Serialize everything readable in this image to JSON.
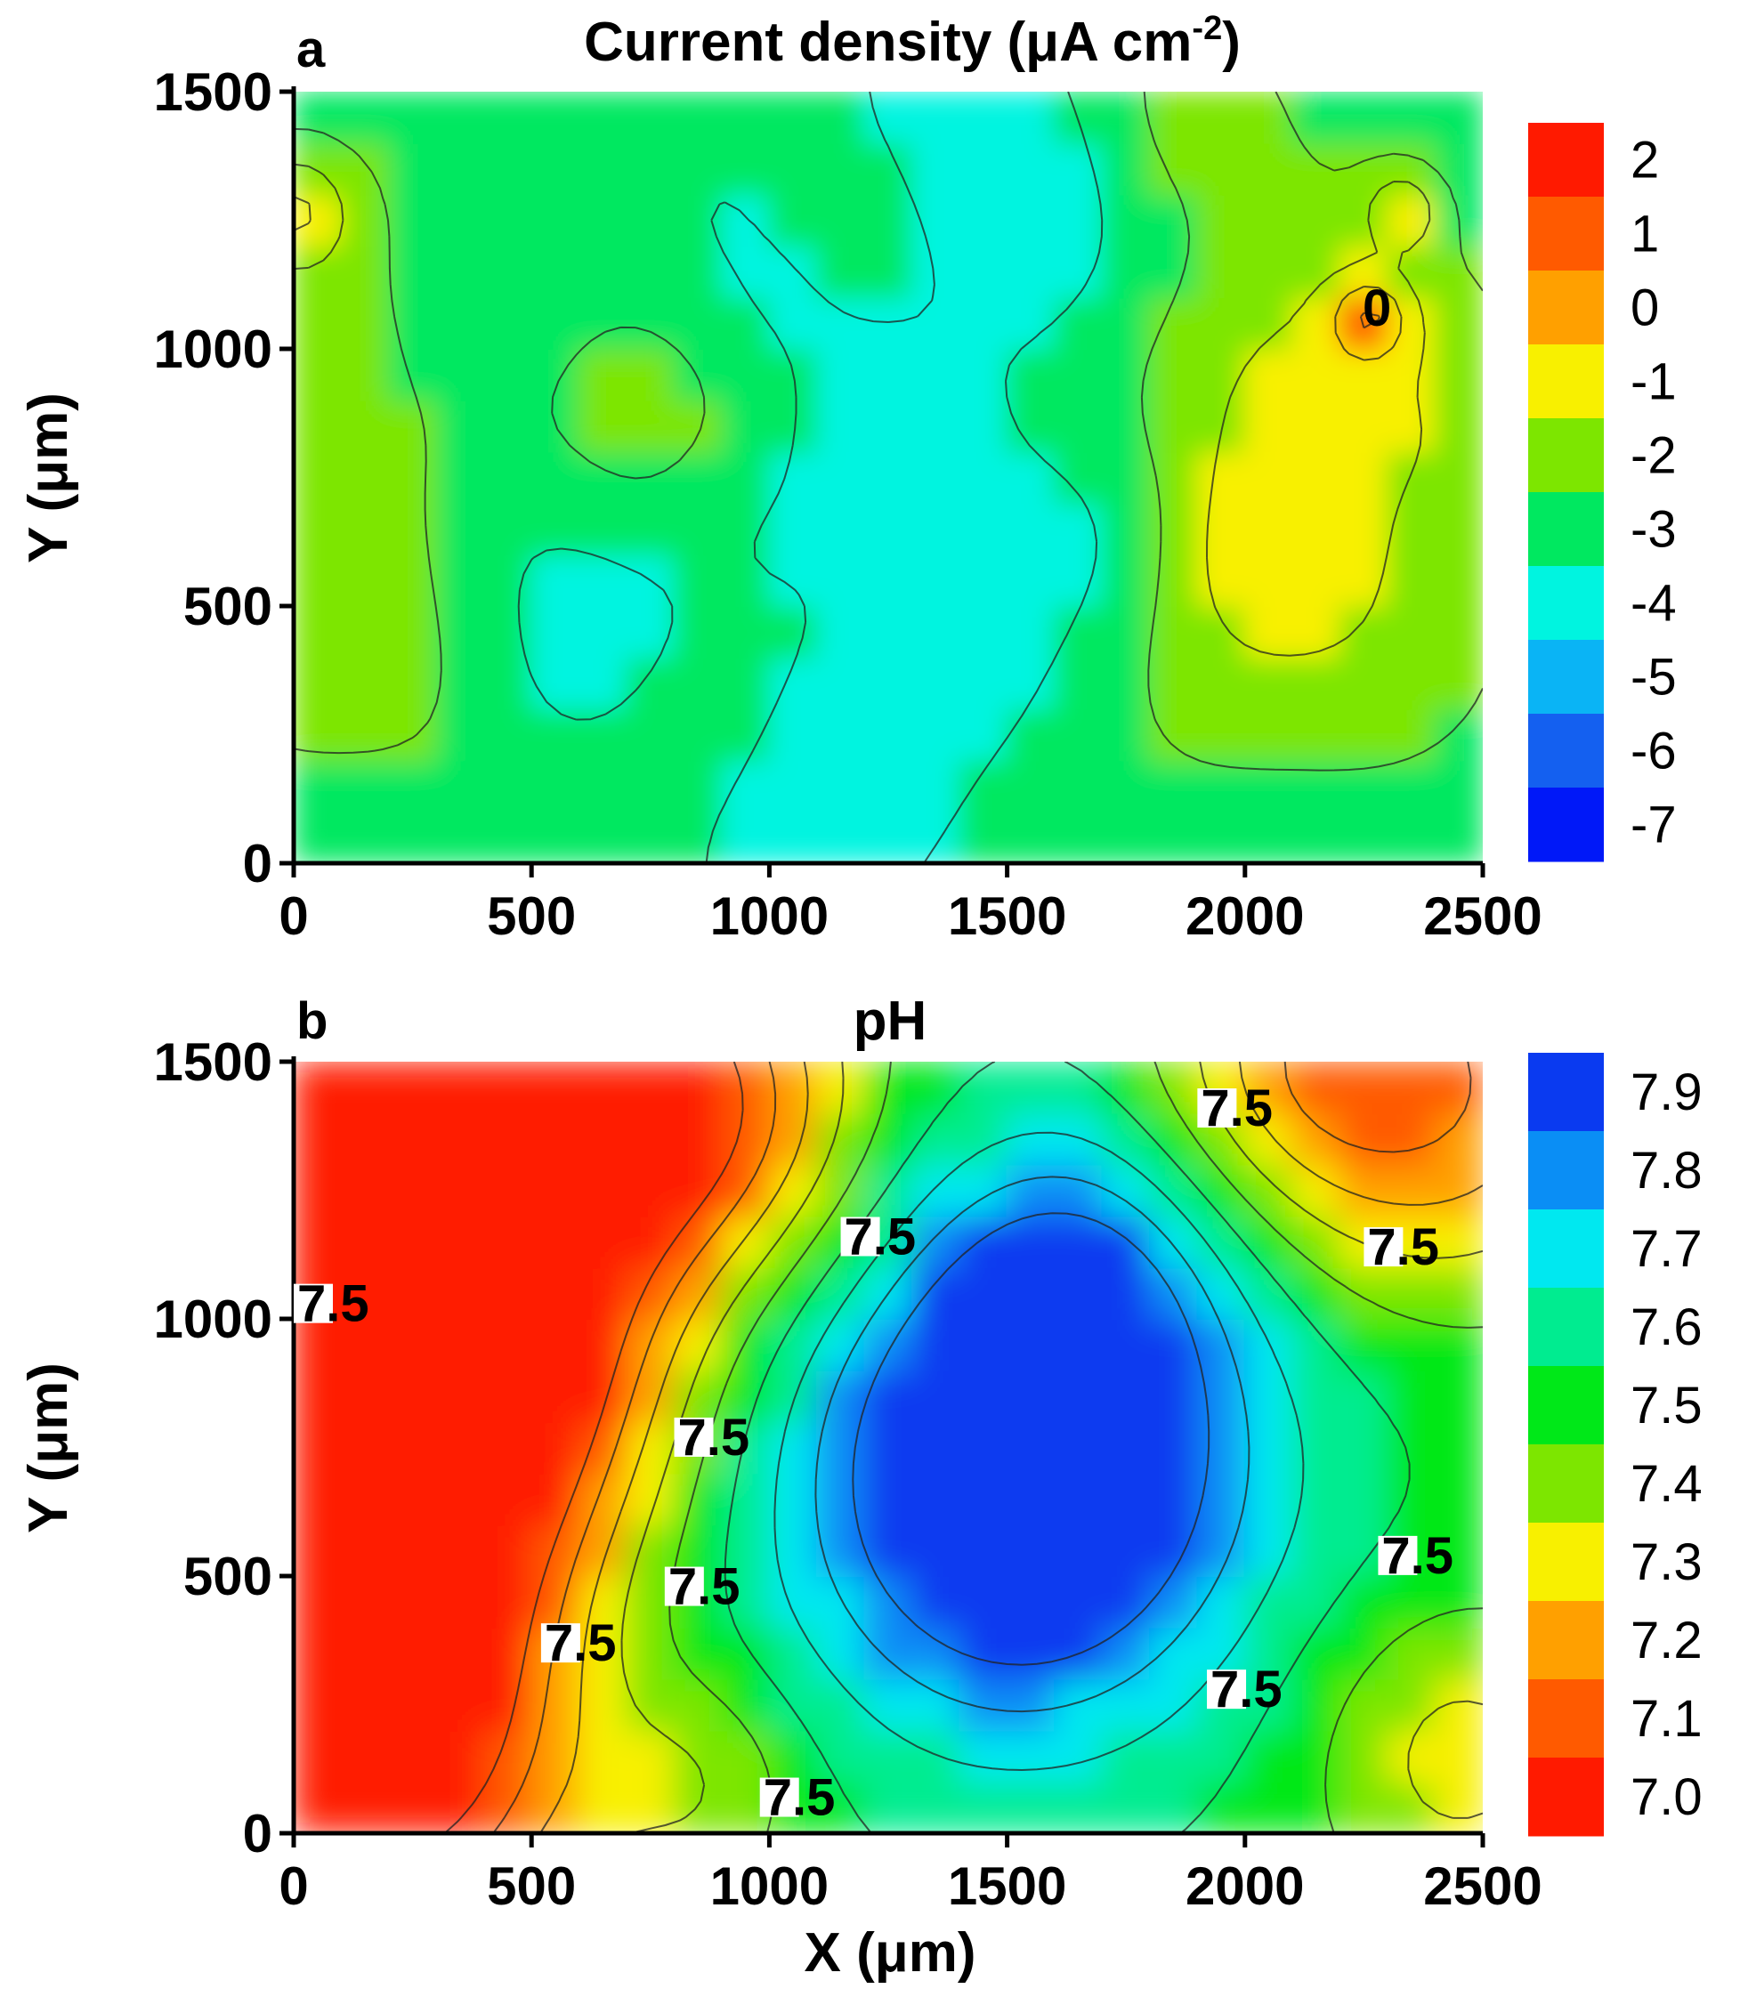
{
  "figure": {
    "panels": [
      "a",
      "b"
    ]
  },
  "chart_data": [
    {
      "type": "heatmap",
      "panel_letter": "a",
      "title": "Current density (μA cm",
      "title_superscript": "-2",
      "title_end": ")",
      "xlabel": "",
      "ylabel": "Y (μm)",
      "xlim": [
        0,
        2500
      ],
      "ylim": [
        0,
        1500
      ],
      "x_ticks": [
        "0",
        "500",
        "1000",
        "1500",
        "2000",
        "2500"
      ],
      "y_ticks": [
        "0",
        "500",
        "1000",
        "1500"
      ],
      "colorbar_labels": [
        "2",
        "1",
        "0",
        "-1",
        "-2",
        "-3",
        "-4",
        "-5",
        "-6",
        "-7"
      ],
      "colorbar_colors": [
        "#ff1a00",
        "#ff5a00",
        "#ffa000",
        "#f8f000",
        "#7de600",
        "#00e860",
        "#00f4e0",
        "#0ab4f5",
        "#1460f0",
        "#0018f8"
      ],
      "contour_labels": [
        {
          "text": "0",
          "x": 2240,
          "y": 1080
        }
      ],
      "blobs": [
        {
          "x": 0,
          "y": 1270,
          "v": 2.2,
          "r": 80
        },
        {
          "x": 2265,
          "y": 1060,
          "v": 2.3,
          "r": 60
        },
        {
          "x": 2330,
          "y": 1270,
          "v": 2.0,
          "r": 55
        },
        {
          "x": 2200,
          "y": 1000,
          "v": 1.2,
          "r": 230
        },
        {
          "x": 2300,
          "y": 420,
          "v": 1.0,
          "r": 200
        },
        {
          "x": 2050,
          "y": 600,
          "v": 1.2,
          "r": 140
        },
        {
          "x": 1850,
          "y": 1450,
          "v": 1.2,
          "r": 180
        },
        {
          "x": 100,
          "y": 1100,
          "v": 0.9,
          "r": 220
        },
        {
          "x": 100,
          "y": 600,
          "v": 0.8,
          "r": 230
        },
        {
          "x": 100,
          "y": 280,
          "v": 0.8,
          "r": 200
        },
        {
          "x": 700,
          "y": 870,
          "v": 1.1,
          "r": 200
        },
        {
          "x": 1200,
          "y": 1260,
          "v": 0.9,
          "r": 150
        },
        {
          "x": 1850,
          "y": 400,
          "v": 0.9,
          "r": 220
        },
        {
          "x": 1950,
          "y": 850,
          "v": 0.9,
          "r": 220
        },
        {
          "x": 850,
          "y": 250,
          "v": 0.7,
          "r": 150
        },
        {
          "x": 2450,
          "y": 800,
          "v": 0.7,
          "r": 170
        },
        {
          "x": 1600,
          "y": 1300,
          "v": -1.0,
          "r": 220
        },
        {
          "x": 1380,
          "y": 1400,
          "v": -0.9,
          "r": 180
        },
        {
          "x": 1500,
          "y": 500,
          "v": -1.0,
          "r": 220
        },
        {
          "x": 650,
          "y": 420,
          "v": -1.0,
          "r": 150
        },
        {
          "x": 1050,
          "y": 80,
          "v": -1.1,
          "r": 170
        },
        {
          "x": 1230,
          "y": 850,
          "v": -0.9,
          "r": 140
        },
        {
          "x": 500,
          "y": 650,
          "v": -0.6,
          "r": 150
        },
        {
          "x": 1750,
          "y": 650,
          "v": -0.6,
          "r": 150
        },
        {
          "x": 400,
          "y": 1100,
          "v": -0.7,
          "r": 150
        },
        {
          "x": 900,
          "y": 1250,
          "v": -0.5,
          "r": 150
        },
        {
          "x": 100,
          "y": 60,
          "v": -0.6,
          "r": 150
        },
        {
          "x": 1200,
          "y": 250,
          "v": -0.5,
          "r": 150
        },
        {
          "x": 950,
          "y": 650,
          "v": -0.5,
          "r": 130
        },
        {
          "x": 1050,
          "y": 1100,
          "v": -0.6,
          "r": 120
        }
      ],
      "base_value": -3.1
    },
    {
      "type": "heatmap",
      "panel_letter": "b",
      "title": "pH",
      "xlabel": "X (μm)",
      "ylabel": "Y (μm)",
      "xlim": [
        0,
        2500
      ],
      "ylim": [
        0,
        1500
      ],
      "x_ticks": [
        "0",
        "500",
        "1000",
        "1500",
        "2000",
        "2500"
      ],
      "y_ticks": [
        "0",
        "500",
        "1000",
        "1500"
      ],
      "colorbar_labels": [
        "7.9",
        "7.8",
        "7.7",
        "7.6",
        "7.5",
        "7.4",
        "7.3",
        "7.2",
        "7.1",
        "7.0"
      ],
      "colorbar_colors": [
        "#0a3af0",
        "#0a8ef5",
        "#00e8f0",
        "#00ec90",
        "#00e818",
        "#7de600",
        "#f8f000",
        "#ffa000",
        "#ff5a00",
        "#ff1a00"
      ],
      "contour_labels": [
        {
          "text": "7.5",
          "x": 1900,
          "y": 1410
        },
        {
          "text": "7.5",
          "x": 1150,
          "y": 1160
        },
        {
          "text": "7.5",
          "x": 2250,
          "y": 1140
        },
        {
          "text": "7.5",
          "x": 0,
          "y": 1030
        },
        {
          "text": "7.5",
          "x": 800,
          "y": 770
        },
        {
          "text": "7.5",
          "x": 780,
          "y": 480
        },
        {
          "text": "7.5",
          "x": 2280,
          "y": 540
        },
        {
          "text": "7.5",
          "x": 520,
          "y": 370
        },
        {
          "text": "7.5",
          "x": 1920,
          "y": 280
        },
        {
          "text": "7.5",
          "x": 980,
          "y": 70
        }
      ],
      "blobs": [
        {
          "x": 1550,
          "y": 750,
          "v": 0.45,
          "r": 330
        },
        {
          "x": 1650,
          "y": 1050,
          "v": 0.2,
          "r": 200
        },
        {
          "x": 1500,
          "y": 600,
          "v": 0.2,
          "r": 300
        },
        {
          "x": 150,
          "y": 1400,
          "v": -0.55,
          "r": 380
        },
        {
          "x": 500,
          "y": 1450,
          "v": -0.45,
          "r": 320
        },
        {
          "x": 900,
          "y": 1400,
          "v": -0.25,
          "r": 220
        },
        {
          "x": 150,
          "y": 600,
          "v": -0.55,
          "r": 330
        },
        {
          "x": 150,
          "y": 150,
          "v": -0.5,
          "r": 300
        },
        {
          "x": 400,
          "y": 900,
          "v": -0.35,
          "r": 250
        },
        {
          "x": 2400,
          "y": 1450,
          "v": -0.35,
          "r": 280
        },
        {
          "x": 2100,
          "y": 1500,
          "v": -0.2,
          "r": 200
        },
        {
          "x": 2450,
          "y": 150,
          "v": -0.2,
          "r": 220
        },
        {
          "x": 80,
          "y": 1000,
          "v": -0.1,
          "r": 100
        },
        {
          "x": 700,
          "y": 380,
          "v": 0.05,
          "r": 200
        },
        {
          "x": 2300,
          "y": 700,
          "v": 0.02,
          "r": 250
        },
        {
          "x": 850,
          "y": 100,
          "v": -0.15,
          "r": 150
        }
      ],
      "base_value": 7.52
    }
  ]
}
